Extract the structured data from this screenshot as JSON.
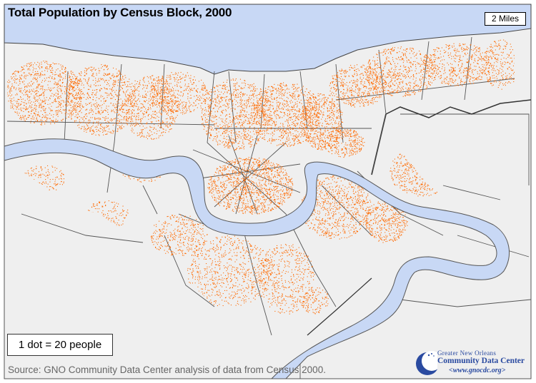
{
  "title": "Total Population by Census Block,  2000",
  "scale_bar": "2 Miles",
  "legend": "1 dot = 20 people",
  "source": "Source: GNO Community Data Center analysis of data from Census 2000.",
  "logo": {
    "line1": "Greater New Orleans",
    "line2": "Community Data Center",
    "line3": "<www.gnocdc.org>"
  },
  "colors": {
    "water": "#c8d8f5",
    "land": "#efefef",
    "dots": "#ff6a00",
    "boundary": "#444444"
  },
  "icons": [
    "crescent-logo-icon"
  ]
}
